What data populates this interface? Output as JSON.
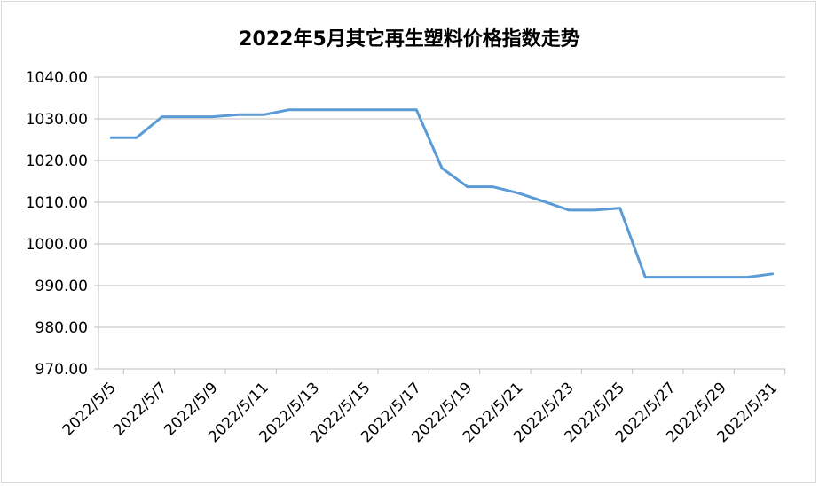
{
  "chart_data": {
    "type": "line",
    "title": "2022年5月其它再生塑料价格指数走势",
    "xlabel": "",
    "ylabel": "",
    "ylim": [
      970,
      1040
    ],
    "y_ticks": [
      "1040.00",
      "1030.00",
      "1020.00",
      "1010.00",
      "1000.00",
      "990.00",
      "980.00",
      "970.00"
    ],
    "x_ticks": [
      "2022/5/5",
      "2022/5/7",
      "2022/5/9",
      "2022/5/11",
      "2022/5/13",
      "2022/5/15",
      "2022/5/17",
      "2022/5/19",
      "2022/5/21",
      "2022/5/23",
      "2022/5/25",
      "2022/5/27",
      "2022/5/29",
      "2022/5/31"
    ],
    "grid": true,
    "legend": "none",
    "series": [
      {
        "color": "#5b9bd5",
        "points": [
          {
            "x": "2022/5/5",
            "y": 1025.5
          },
          {
            "x": "2022/5/6",
            "y": 1025.5
          },
          {
            "x": "2022/5/7",
            "y": 1030.5
          },
          {
            "x": "2022/5/8",
            "y": 1030.5
          },
          {
            "x": "2022/5/9",
            "y": 1030.5
          },
          {
            "x": "2022/5/10",
            "y": 1031.0
          },
          {
            "x": "2022/5/11",
            "y": 1031.0
          },
          {
            "x": "2022/5/12",
            "y": 1032.2
          },
          {
            "x": "2022/5/13",
            "y": 1032.2
          },
          {
            "x": "2022/5/14",
            "y": 1032.2
          },
          {
            "x": "2022/5/15",
            "y": 1032.2
          },
          {
            "x": "2022/5/16",
            "y": 1032.2
          },
          {
            "x": "2022/5/17",
            "y": 1032.2
          },
          {
            "x": "2022/5/18",
            "y": 1018.2
          },
          {
            "x": "2022/5/19",
            "y": 1013.7
          },
          {
            "x": "2022/5/20",
            "y": 1013.7
          },
          {
            "x": "2022/5/21",
            "y": 1012.2
          },
          {
            "x": "2022/5/22",
            "y": 1010.2
          },
          {
            "x": "2022/5/23",
            "y": 1008.1
          },
          {
            "x": "2022/5/24",
            "y": 1008.1
          },
          {
            "x": "2022/5/25",
            "y": 1008.6
          },
          {
            "x": "2022/5/26",
            "y": 992.0
          },
          {
            "x": "2022/5/27",
            "y": 992.0
          },
          {
            "x": "2022/5/28",
            "y": 992.0
          },
          {
            "x": "2022/5/29",
            "y": 992.0
          },
          {
            "x": "2022/5/30",
            "y": 992.0
          },
          {
            "x": "2022/5/31",
            "y": 992.8
          }
        ]
      }
    ]
  }
}
